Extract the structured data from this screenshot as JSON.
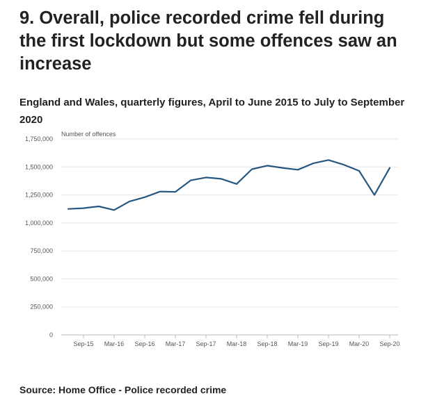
{
  "title": "9. Overall, police recorded crime fell during the first lockdown but some offences saw an increase",
  "subtitle": "England and Wales, quarterly figures, April to June 2015 to July to September 2020",
  "source": "Source: Home Office - Police recorded crime",
  "colors": {
    "line": "#27567f",
    "grid": "#e6e6e6",
    "axis": "#bbbbbb"
  },
  "chart_data": {
    "type": "line",
    "ylabel": "Number of offences",
    "ylim": [
      0,
      1750000
    ],
    "yticks": [
      0,
      250000,
      500000,
      750000,
      1000000,
      1250000,
      1500000,
      1750000
    ],
    "ytick_labels": [
      "0",
      "250,000",
      "500,000",
      "750,000",
      "1,000,000",
      "1,250,000",
      "1,500,000",
      "1,750,000"
    ],
    "x_tick_labels": [
      "Sep-15",
      "Mar-16",
      "Sep-16",
      "Mar-17",
      "Sep-17",
      "Mar-18",
      "Sep-18",
      "Mar-19",
      "Sep-19",
      "Mar-20",
      "Sep-20"
    ],
    "categories": [
      "Jun-15",
      "Sep-15",
      "Dec-15",
      "Mar-16",
      "Jun-16",
      "Sep-16",
      "Dec-16",
      "Mar-17",
      "Jun-17",
      "Sep-17",
      "Dec-17",
      "Mar-18",
      "Jun-18",
      "Sep-18",
      "Dec-18",
      "Mar-19",
      "Jun-19",
      "Sep-19",
      "Dec-19",
      "Mar-20",
      "Jun-20",
      "Sep-20"
    ],
    "values": [
      1125000,
      1132000,
      1148000,
      1115000,
      1192000,
      1230000,
      1280000,
      1278000,
      1380000,
      1406000,
      1394000,
      1348000,
      1480000,
      1512000,
      1492000,
      1475000,
      1532000,
      1562000,
      1520000,
      1465000,
      1250000,
      1492000
    ],
    "grid": true,
    "legend": "none"
  }
}
